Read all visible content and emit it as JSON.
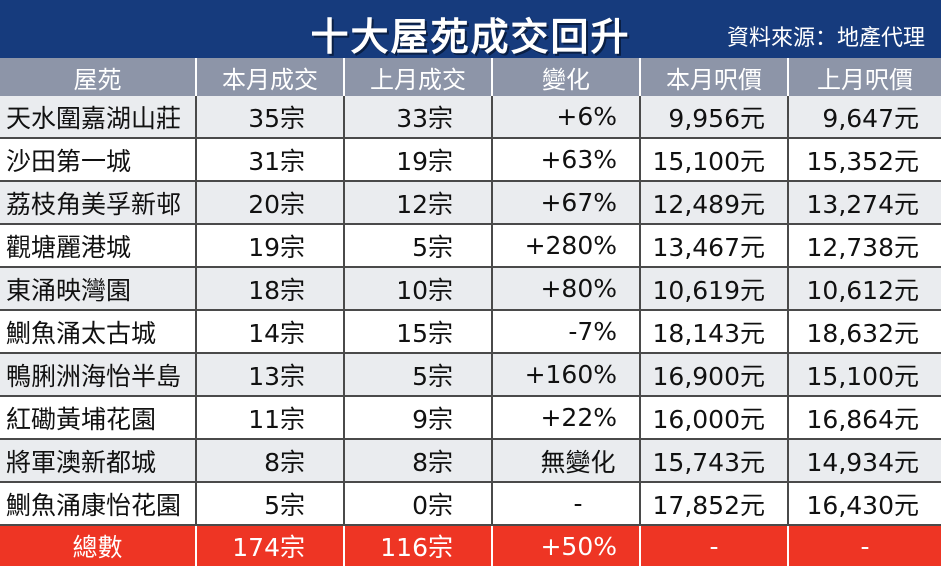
{
  "header": {
    "title": "十大屋苑成交回升",
    "source": "資料來源：地產代理"
  },
  "table": {
    "columns": [
      "屋苑",
      "本月成交",
      "上月成交",
      "變化",
      "本月呎價",
      "上月呎價"
    ],
    "rows": [
      {
        "estate": "天水圍嘉湖山莊",
        "this_month": "35宗",
        "last_month": "33宗",
        "change": "+6%",
        "price_this": "9,956元",
        "price_last": "9,647元"
      },
      {
        "estate": "沙田第一城",
        "this_month": "31宗",
        "last_month": "19宗",
        "change": "+63%",
        "price_this": "15,100元",
        "price_last": "15,352元"
      },
      {
        "estate": "荔枝角美孚新邨",
        "this_month": "20宗",
        "last_month": "12宗",
        "change": "+67%",
        "price_this": "12,489元",
        "price_last": "13,274元"
      },
      {
        "estate": "觀塘麗港城",
        "this_month": "19宗",
        "last_month": "5宗",
        "change": "+280%",
        "price_this": "13,467元",
        "price_last": "12,738元"
      },
      {
        "estate": "東涌映灣園",
        "this_month": "18宗",
        "last_month": "10宗",
        "change": "+80%",
        "price_this": "10,619元",
        "price_last": "10,612元"
      },
      {
        "estate": "鰂魚涌太古城",
        "this_month": "14宗",
        "last_month": "15宗",
        "change": "-7%",
        "price_this": "18,143元",
        "price_last": "18,632元"
      },
      {
        "estate": "鴨脷洲海怡半島",
        "this_month": "13宗",
        "last_month": "5宗",
        "change": "+160%",
        "price_this": "16,900元",
        "price_last": "15,100元"
      },
      {
        "estate": "紅磡黃埔花園",
        "this_month": "11宗",
        "last_month": "9宗",
        "change": "+22%",
        "price_this": "16,000元",
        "price_last": "16,864元"
      },
      {
        "estate": "將軍澳新都城",
        "this_month": "8宗",
        "last_month": "8宗",
        "change": "無變化",
        "price_this": "15,743元",
        "price_last": "14,934元"
      },
      {
        "estate": "鰂魚涌康怡花園",
        "this_month": "5宗",
        "last_month": "0宗",
        "change": "-",
        "price_this": "17,852元",
        "price_last": "16,430元"
      }
    ],
    "total": {
      "label": "總數",
      "this_month": "174宗",
      "last_month": "116宗",
      "change": "+50%",
      "price_this": "-",
      "price_last": "-"
    }
  },
  "colors": {
    "title_bg": "#163b7d",
    "header_bg": "#8d95a8",
    "total_bg": "#ee3524",
    "stripe": "#eaecef"
  }
}
